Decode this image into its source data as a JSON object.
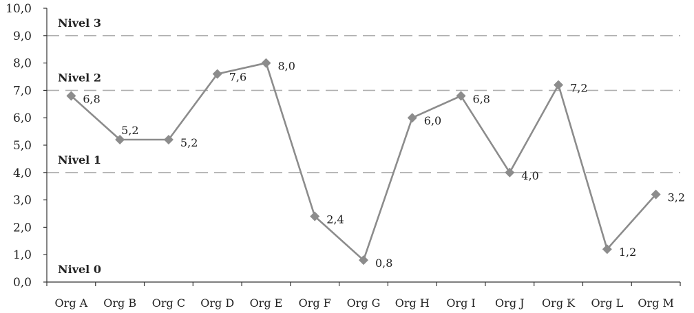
{
  "chart_data": {
    "type": "line",
    "categories": [
      "Org A",
      "Org B",
      "Org C",
      "Org D",
      "Org E",
      "Org F",
      "Org G",
      "Org H",
      "Org I",
      "Org J",
      "Org K",
      "Org L",
      "Org M"
    ],
    "values": [
      6.8,
      5.2,
      5.2,
      7.6,
      8.0,
      2.4,
      0.8,
      6.0,
      6.8,
      4.0,
      7.2,
      1.2,
      3.2
    ],
    "value_labels": [
      "6,8",
      "5,2",
      "5,2",
      "7,6",
      "8,0",
      "2,4",
      "0,8",
      "6,0",
      "6,8",
      "4,0",
      "7,2",
      "1,2",
      "3,2"
    ],
    "y_ticks": [
      0,
      1,
      2,
      3,
      4,
      5,
      6,
      7,
      8,
      9,
      10
    ],
    "y_tick_labels": [
      "0,0",
      "1,0",
      "2,0",
      "3,0",
      "4,0",
      "5,0",
      "6,0",
      "7,0",
      "8,0",
      "9,0",
      "10,0"
    ],
    "ylim": [
      0,
      10
    ],
    "reference_lines": [
      {
        "value": 9,
        "label": "Nivel 3"
      },
      {
        "value": 7,
        "label": "Nivel 2"
      },
      {
        "value": 4,
        "label": "Nivel 1"
      },
      {
        "value": 0,
        "label": "Nivel 0"
      }
    ],
    "title": "",
    "xlabel": "",
    "ylabel": "",
    "grid": false,
    "legend": "none",
    "line_color": "#8c8c8c",
    "marker": "diamond",
    "reference_line_color": "#b0b0b0"
  }
}
